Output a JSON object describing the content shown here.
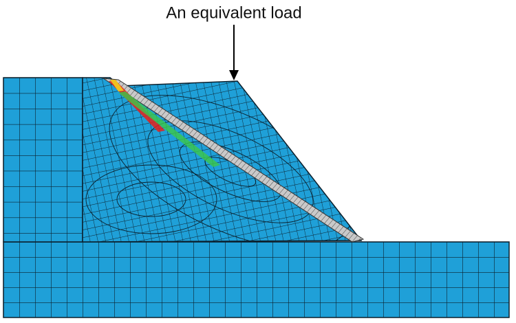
{
  "annotation": {
    "label": "An equivalent load"
  }
}
